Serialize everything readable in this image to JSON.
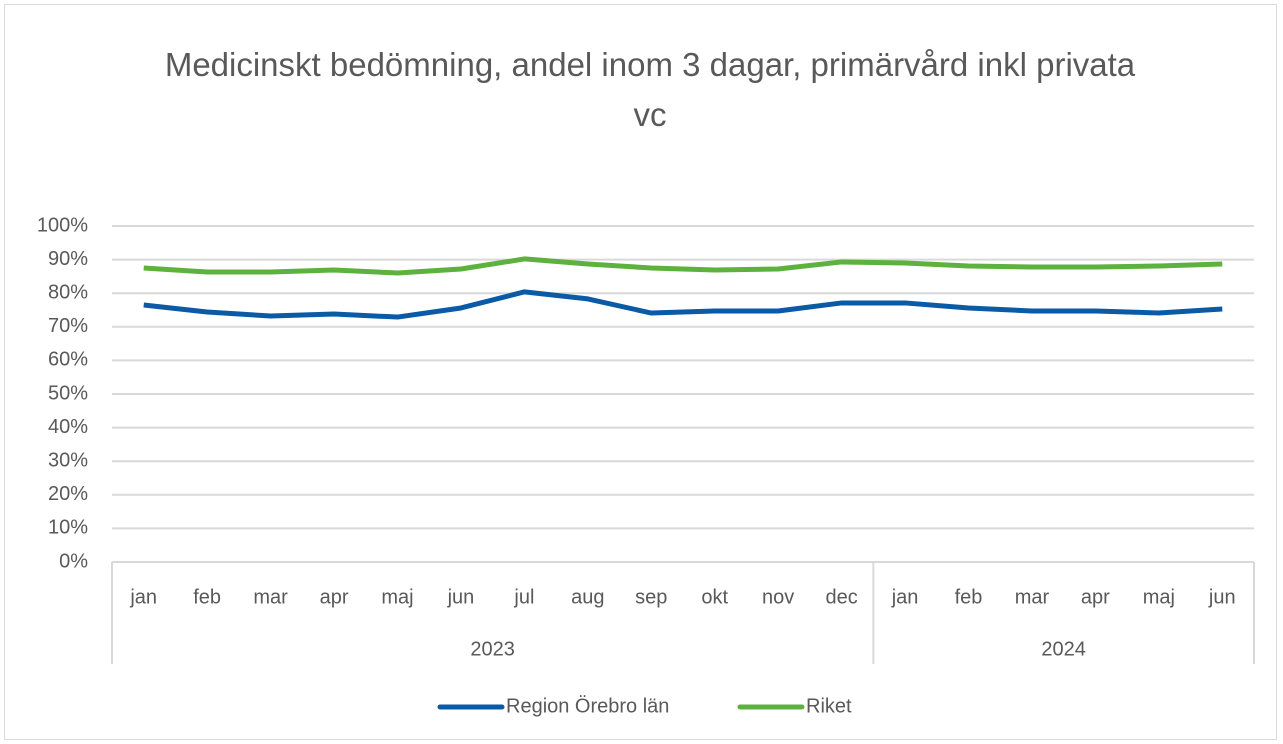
{
  "chart_data": {
    "type": "line",
    "title": "Medicinskt bedömning, andel inom 3 dagar, primärvård inkl privata vc",
    "groups": [
      {
        "name": "2023",
        "categories": [
          "jan",
          "feb",
          "mar",
          "apr",
          "maj",
          "jun",
          "jul",
          "aug",
          "sep",
          "okt",
          "nov",
          "dec"
        ]
      },
      {
        "name": "2024",
        "categories": [
          "jan",
          "feb",
          "mar",
          "apr",
          "maj",
          "jun"
        ]
      }
    ],
    "series": [
      {
        "name": "Region Örebro län",
        "color": "#0b5aa6",
        "values": [
          76.5,
          74.4,
          73.2,
          73.8,
          72.9,
          75.6,
          80.4,
          78.3,
          74.1,
          74.7,
          74.7,
          77.1,
          77.1,
          75.6,
          74.7,
          74.7,
          74.1,
          75.3
        ]
      },
      {
        "name": "Riket",
        "color": "#5db13e",
        "values": [
          87.5,
          86.3,
          86.3,
          86.9,
          86.0,
          87.2,
          90.2,
          88.7,
          87.5,
          86.9,
          87.2,
          89.3,
          89.0,
          88.1,
          87.8,
          87.8,
          88.1,
          88.7
        ]
      }
    ],
    "ylim": [
      0,
      100
    ],
    "yticks": [
      {
        "value": 0,
        "label": "0%"
      },
      {
        "value": 10,
        "label": "10%"
      },
      {
        "value": 20,
        "label": "20%"
      },
      {
        "value": 30,
        "label": "30%"
      },
      {
        "value": 40,
        "label": "40%"
      },
      {
        "value": 50,
        "label": "50%"
      },
      {
        "value": 60,
        "label": "60%"
      },
      {
        "value": 70,
        "label": "70%"
      },
      {
        "value": 80,
        "label": "80%"
      },
      {
        "value": 90,
        "label": "90%"
      },
      {
        "value": 100,
        "label": "100%"
      }
    ],
    "grid": true,
    "legend": "bottom"
  }
}
